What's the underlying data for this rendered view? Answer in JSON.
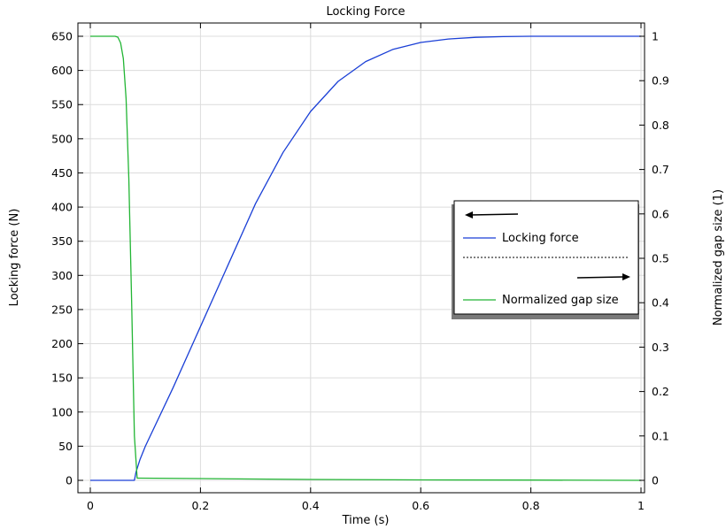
{
  "chart_data": {
    "type": "line",
    "title": "Locking Force",
    "xlabel": "Time (s)",
    "ylabel_left": "Locking force (N)",
    "ylabel_right": "Normalized gap size (1)",
    "xlim": [
      0,
      1
    ],
    "ylim_left": [
      0,
      650
    ],
    "ylim_right": [
      0,
      1
    ],
    "x_ticks": [
      0,
      0.2,
      0.4,
      0.6,
      0.8,
      1
    ],
    "x_tick_labels": [
      "0",
      "0.2",
      "0.4",
      "0.6",
      "0.8",
      "1"
    ],
    "y_left_ticks": [
      0,
      50,
      100,
      150,
      200,
      250,
      300,
      350,
      400,
      450,
      500,
      550,
      600,
      650
    ],
    "y_left_tick_labels": [
      "0",
      "50",
      "100",
      "150",
      "200",
      "250",
      "300",
      "350",
      "400",
      "450",
      "500",
      "550",
      "600",
      "650"
    ],
    "y_right_ticks": [
      0,
      0.1,
      0.2,
      0.3,
      0.4,
      0.5,
      0.6,
      0.7,
      0.8,
      0.9,
      1
    ],
    "y_right_tick_labels": [
      "0",
      "0.1",
      "0.2",
      "0.3",
      "0.4",
      "0.5",
      "0.6",
      "0.7",
      "0.8",
      "0.9",
      "1"
    ],
    "grid": true,
    "legend_position": "right-middle",
    "series": [
      {
        "name": "Locking force",
        "axis": "left",
        "color": "#1a3fd6",
        "x": [
          0,
          0.05,
          0.08,
          0.083,
          0.09,
          0.1,
          0.15,
          0.2,
          0.25,
          0.3,
          0.35,
          0.4,
          0.45,
          0.5,
          0.55,
          0.6,
          0.65,
          0.7,
          0.75,
          0.8,
          0.85,
          0.9,
          0.95,
          1.0
        ],
        "y": [
          0,
          0,
          0,
          12,
          30,
          50,
          135,
          225,
          315,
          405,
          480,
          540,
          584,
          613,
          631,
          641,
          646,
          648.5,
          649.5,
          650,
          650,
          650,
          650,
          650
        ]
      },
      {
        "name": "Normalized gap size",
        "axis": "right",
        "color": "#22b534",
        "x": [
          0,
          0.045,
          0.05,
          0.055,
          0.06,
          0.065,
          0.07,
          0.075,
          0.08,
          0.085,
          0.09,
          0.2,
          0.4,
          0.6,
          0.8,
          1.0
        ],
        "y": [
          1,
          1,
          0.998,
          0.985,
          0.95,
          0.86,
          0.68,
          0.4,
          0.1,
          0.005,
          0.005,
          0.004,
          0.002,
          0.001,
          0.0005,
          0
        ]
      }
    ]
  }
}
